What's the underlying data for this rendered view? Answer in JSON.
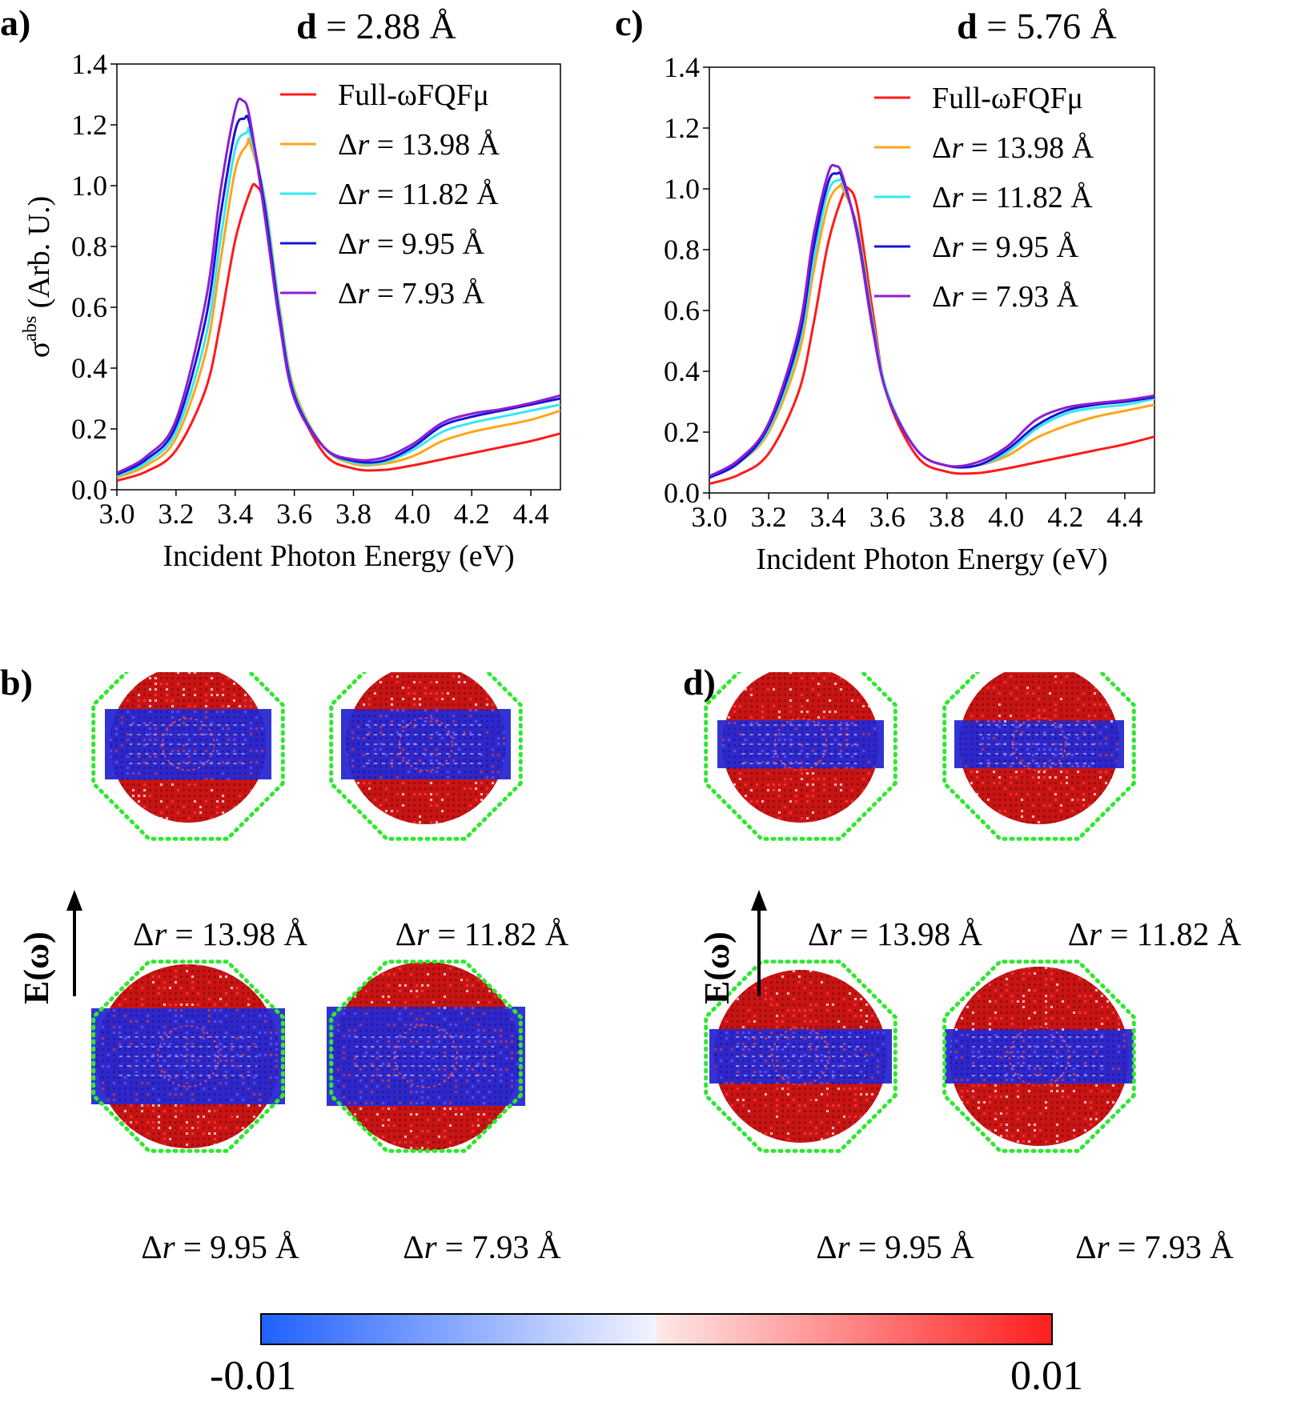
{
  "figure": {
    "panel_labels": [
      "a)",
      "b)",
      "c)",
      "d)"
    ],
    "dr_prefix": "Δ",
    "dr_var": "r",
    "dr_values": [
      "= 13.98 Å",
      "= 11.82 Å",
      "= 9.95 Å",
      "= 7.93 Å"
    ],
    "field_label": "E(ω)",
    "colorbar": {
      "min_label": "-0.01",
      "max_label": "0.01",
      "low_color": "#2060ff",
      "mid_color": "#f4f4ff",
      "high_color": "#ff1e1e"
    },
    "density_colors": {
      "positive": "#c81414",
      "negative": "#2828d2",
      "shell": "#2ee82e"
    }
  },
  "chart_data": [
    {
      "type": "line",
      "title_bold": "d",
      "title_rest": " = 2.88 Å",
      "xlabel": "Incident Photon Energy (eV)",
      "ylabel_sym": "σ",
      "ylabel_sup": "abs",
      "ylabel_rest": " (Arb. U.)",
      "xlim": [
        3.0,
        4.5
      ],
      "ylim": [
        0.0,
        1.4
      ],
      "xticks": [
        "3.0",
        "3.2",
        "3.4",
        "3.6",
        "3.8",
        "4.0",
        "4.2",
        "4.4"
      ],
      "yticks": [
        "0.0",
        "0.2",
        "0.4",
        "0.6",
        "0.8",
        "1.0",
        "1.2",
        "1.4"
      ],
      "legend_loc": "upper right",
      "series": [
        {
          "name": "Full-ωFQFμ",
          "color": "#ff1a1a",
          "name_var": "",
          "x": [
            3.0,
            3.1,
            3.2,
            3.3,
            3.35,
            3.4,
            3.45,
            3.47,
            3.5,
            3.55,
            3.6,
            3.7,
            3.8,
            3.9,
            4.0,
            4.1,
            4.2,
            4.3,
            4.4,
            4.5
          ],
          "y": [
            0.03,
            0.06,
            0.13,
            0.33,
            0.55,
            0.82,
            0.98,
            1.0,
            0.93,
            0.6,
            0.32,
            0.12,
            0.07,
            0.065,
            0.08,
            0.1,
            0.12,
            0.14,
            0.16,
            0.185
          ]
        },
        {
          "name": " = 13.98 Å",
          "color": "#ffa51a",
          "name_var": "r",
          "x": [
            3.0,
            3.1,
            3.2,
            3.3,
            3.35,
            3.4,
            3.44,
            3.45,
            3.5,
            3.55,
            3.6,
            3.7,
            3.8,
            3.9,
            4.0,
            4.1,
            4.2,
            4.3,
            4.4,
            4.5
          ],
          "y": [
            0.04,
            0.08,
            0.17,
            0.45,
            0.75,
            1.05,
            1.135,
            1.14,
            0.96,
            0.6,
            0.33,
            0.14,
            0.085,
            0.085,
            0.11,
            0.16,
            0.19,
            0.21,
            0.23,
            0.26
          ]
        },
        {
          "name": " = 11.82 Å",
          "color": "#33e8ee",
          "name_var": "r",
          "x": [
            3.0,
            3.1,
            3.2,
            3.3,
            3.35,
            3.4,
            3.44,
            3.45,
            3.5,
            3.55,
            3.6,
            3.7,
            3.8,
            3.9,
            4.0,
            4.1,
            4.2,
            4.3,
            4.4,
            4.5
          ],
          "y": [
            0.045,
            0.09,
            0.19,
            0.5,
            0.82,
            1.12,
            1.175,
            1.17,
            0.95,
            0.59,
            0.32,
            0.14,
            0.09,
            0.09,
            0.13,
            0.19,
            0.22,
            0.24,
            0.26,
            0.28
          ]
        },
        {
          "name": " = 9.95 Å",
          "color": "#1414d4",
          "name_var": "r",
          "x": [
            3.0,
            3.1,
            3.2,
            3.3,
            3.35,
            3.4,
            3.43,
            3.45,
            3.5,
            3.55,
            3.6,
            3.7,
            3.8,
            3.9,
            4.0,
            4.1,
            4.2,
            4.3,
            4.4,
            4.5
          ],
          "y": [
            0.05,
            0.1,
            0.21,
            0.56,
            0.9,
            1.18,
            1.22,
            1.2,
            0.93,
            0.57,
            0.31,
            0.14,
            0.095,
            0.095,
            0.14,
            0.21,
            0.24,
            0.26,
            0.28,
            0.3
          ]
        },
        {
          "name": " = 7.93 Å",
          "color": "#8c1ed4",
          "name_var": "r",
          "x": [
            3.0,
            3.1,
            3.2,
            3.3,
            3.35,
            3.4,
            3.425,
            3.45,
            3.5,
            3.55,
            3.6,
            3.7,
            3.8,
            3.9,
            4.0,
            4.1,
            4.2,
            4.3,
            4.4,
            4.5
          ],
          "y": [
            0.055,
            0.11,
            0.23,
            0.62,
            0.98,
            1.25,
            1.28,
            1.22,
            0.9,
            0.55,
            0.3,
            0.14,
            0.1,
            0.105,
            0.15,
            0.22,
            0.25,
            0.265,
            0.285,
            0.31
          ]
        }
      ]
    },
    {
      "type": "line",
      "title_bold": "d",
      "title_rest": " = 5.76 Å",
      "xlabel": "Incident Photon Energy (eV)",
      "ylabel_sym": "σ",
      "ylabel_sup": "abs",
      "ylabel_rest": " (Arb. U.)",
      "xlim": [
        3.0,
        4.5
      ],
      "ylim": [
        0.0,
        1.4
      ],
      "xticks": [
        "3.0",
        "3.2",
        "3.4",
        "3.6",
        "3.8",
        "4.0",
        "4.2",
        "4.4"
      ],
      "yticks": [
        "0.0",
        "0.2",
        "0.4",
        "0.6",
        "0.8",
        "1.0",
        "1.2",
        "1.4"
      ],
      "legend_loc": "upper right",
      "series": [
        {
          "name": "Full-ωFQFμ",
          "color": "#ff1a1a",
          "name_var": "",
          "x": [
            3.0,
            3.1,
            3.2,
            3.3,
            3.35,
            3.4,
            3.45,
            3.47,
            3.5,
            3.55,
            3.6,
            3.7,
            3.8,
            3.9,
            4.0,
            4.1,
            4.2,
            4.3,
            4.4,
            4.5
          ],
          "y": [
            0.03,
            0.06,
            0.13,
            0.33,
            0.55,
            0.82,
            0.98,
            1.0,
            0.93,
            0.6,
            0.32,
            0.12,
            0.07,
            0.065,
            0.08,
            0.1,
            0.12,
            0.14,
            0.16,
            0.185
          ]
        },
        {
          "name": " = 13.98 Å",
          "color": "#ffa51a",
          "name_var": "r",
          "x": [
            3.0,
            3.1,
            3.2,
            3.3,
            3.35,
            3.4,
            3.44,
            3.45,
            3.5,
            3.55,
            3.6,
            3.7,
            3.8,
            3.9,
            4.0,
            4.1,
            4.2,
            4.3,
            4.4,
            4.5
          ],
          "y": [
            0.05,
            0.1,
            0.2,
            0.45,
            0.72,
            0.95,
            1.01,
            1.0,
            0.87,
            0.57,
            0.33,
            0.14,
            0.09,
            0.09,
            0.12,
            0.18,
            0.22,
            0.25,
            0.27,
            0.29
          ]
        },
        {
          "name": " = 11.82 Å",
          "color": "#33e8ee",
          "name_var": "r",
          "x": [
            3.0,
            3.1,
            3.2,
            3.3,
            3.35,
            3.4,
            3.44,
            3.45,
            3.5,
            3.55,
            3.6,
            3.7,
            3.8,
            3.9,
            4.0,
            4.1,
            4.2,
            4.3,
            4.4,
            4.5
          ],
          "y": [
            0.05,
            0.1,
            0.21,
            0.48,
            0.76,
            0.99,
            1.03,
            1.02,
            0.86,
            0.56,
            0.33,
            0.14,
            0.09,
            0.09,
            0.13,
            0.21,
            0.26,
            0.28,
            0.29,
            0.31
          ]
        },
        {
          "name": " = 9.95 Å",
          "color": "#1414d4",
          "name_var": "r",
          "x": [
            3.0,
            3.1,
            3.2,
            3.3,
            3.35,
            3.4,
            3.43,
            3.45,
            3.5,
            3.55,
            3.6,
            3.7,
            3.8,
            3.9,
            4.0,
            4.1,
            4.2,
            4.3,
            4.4,
            4.5
          ],
          "y": [
            0.05,
            0.1,
            0.22,
            0.5,
            0.8,
            1.02,
            1.05,
            1.03,
            0.85,
            0.55,
            0.32,
            0.14,
            0.09,
            0.09,
            0.14,
            0.22,
            0.27,
            0.29,
            0.3,
            0.315
          ]
        },
        {
          "name": " = 7.93 Å",
          "color": "#8c1ed4",
          "name_var": "r",
          "x": [
            3.0,
            3.1,
            3.2,
            3.3,
            3.35,
            3.4,
            3.425,
            3.45,
            3.5,
            3.55,
            3.6,
            3.7,
            3.8,
            3.9,
            4.0,
            4.1,
            4.2,
            4.3,
            4.4,
            4.5
          ],
          "y": [
            0.055,
            0.11,
            0.23,
            0.53,
            0.84,
            1.05,
            1.075,
            1.04,
            0.84,
            0.54,
            0.32,
            0.14,
            0.09,
            0.1,
            0.15,
            0.24,
            0.28,
            0.295,
            0.305,
            0.32
          ]
        }
      ]
    }
  ]
}
